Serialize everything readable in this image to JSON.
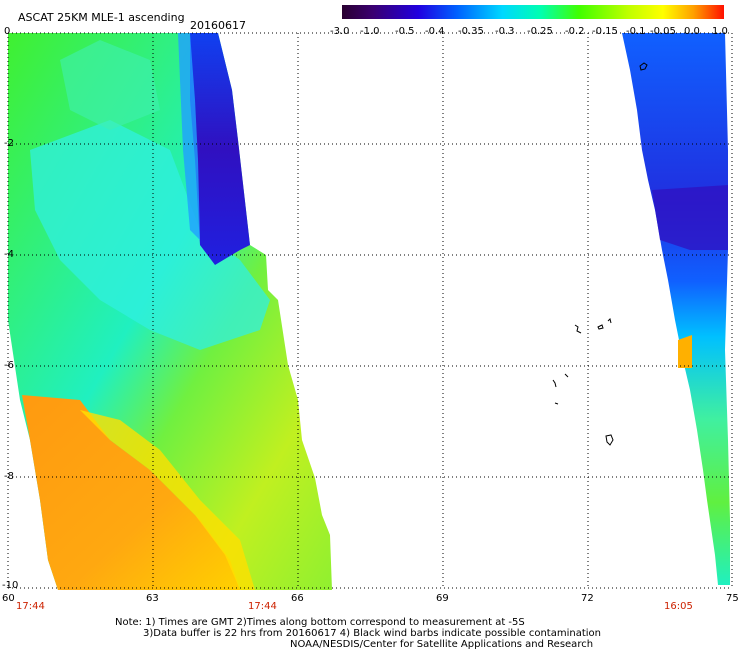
{
  "header": {
    "title": "ASCAT 25KM MLE-1 ascending",
    "date": "20160617"
  },
  "colorbar": {
    "labels": [
      "-3.0",
      "-1.0",
      "-0.5",
      "-0.4",
      "-0.35",
      "-0.3",
      "-0.25",
      "-0.2",
      "-0.15",
      "-0.1",
      "-0.05",
      "0.0",
      "1.0"
    ],
    "colors": [
      "#2a0030",
      "#3a0070",
      "#4a00b0",
      "#2000e0",
      "#0040ff",
      "#0090ff",
      "#00d8ff",
      "#00ffd0",
      "#00ff80",
      "#30ff00",
      "#a0ff00",
      "#ffff00",
      "#ffb000",
      "#ff6000",
      "#ff2000"
    ]
  },
  "axes": {
    "x_ticks": [
      "60",
      "63",
      "66",
      "69",
      "72",
      "75"
    ],
    "y_ticks": [
      "0",
      "-2",
      "-4",
      "-6",
      "-8",
      "-10"
    ]
  },
  "swath_times": {
    "left": "17:44",
    "middle": "17:44",
    "right": "16:05"
  },
  "footer": {
    "line1": "Note: 1) Times are GMT 2)Times along bottom correspond to measurement at -5S",
    "line2": "3)Data buffer is 22 hrs from 20160617 4) Black wind barbs indicate possible contamination",
    "line3": "NOAA/NESDIS/Center for Satellite Applications and Research"
  }
}
